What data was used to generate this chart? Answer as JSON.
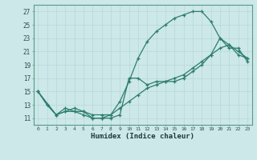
{
  "xlabel": "Humidex (Indice chaleur)",
  "bg_color": "#cce8e8",
  "grid_color": "#b8d8d8",
  "line_color": "#2e7d6e",
  "xlim": [
    -0.5,
    23.5
  ],
  "ylim": [
    10.0,
    28.0
  ],
  "xticks": [
    0,
    1,
    2,
    3,
    4,
    5,
    6,
    7,
    8,
    9,
    10,
    11,
    12,
    13,
    14,
    15,
    16,
    17,
    18,
    19,
    20,
    21,
    22,
    23
  ],
  "yticks": [
    11,
    13,
    15,
    17,
    19,
    21,
    23,
    25,
    27
  ],
  "line1_x": [
    0,
    1,
    2,
    3,
    4,
    5,
    6,
    7,
    8,
    9,
    10,
    11,
    12,
    13,
    14,
    15,
    16,
    17,
    18,
    19,
    20,
    21,
    22,
    23
  ],
  "line1_y": [
    15,
    13,
    11.5,
    12,
    12,
    11.5,
    11,
    11,
    11.5,
    13.5,
    16.5,
    20,
    22.5,
    24,
    25,
    26,
    26.5,
    27,
    27,
    25.5,
    23,
    21.5,
    21.5,
    19.5
  ],
  "line2_x": [
    0,
    2,
    3,
    4,
    5,
    6,
    7,
    8,
    9,
    10,
    11,
    12,
    13,
    14,
    15,
    16,
    17,
    18,
    19,
    20,
    21,
    22,
    23
  ],
  "line2_y": [
    15,
    11.5,
    12.5,
    12,
    12,
    11,
    11,
    11,
    11.5,
    17,
    17,
    16,
    16.5,
    16.5,
    16.5,
    17,
    18,
    19,
    20.5,
    23,
    22,
    21,
    20
  ],
  "line3_x": [
    0,
    1,
    2,
    3,
    4,
    5,
    6,
    7,
    8,
    9,
    10,
    11,
    12,
    13,
    14,
    15,
    16,
    17,
    18,
    19,
    20,
    21,
    22,
    23
  ],
  "line3_y": [
    15,
    13,
    11.5,
    12,
    12.5,
    12,
    11.5,
    11.5,
    11.5,
    12.5,
    13.5,
    14.5,
    15.5,
    16,
    16.5,
    17,
    17.5,
    18.5,
    19.5,
    20.5,
    21.5,
    22,
    20.5,
    20
  ]
}
